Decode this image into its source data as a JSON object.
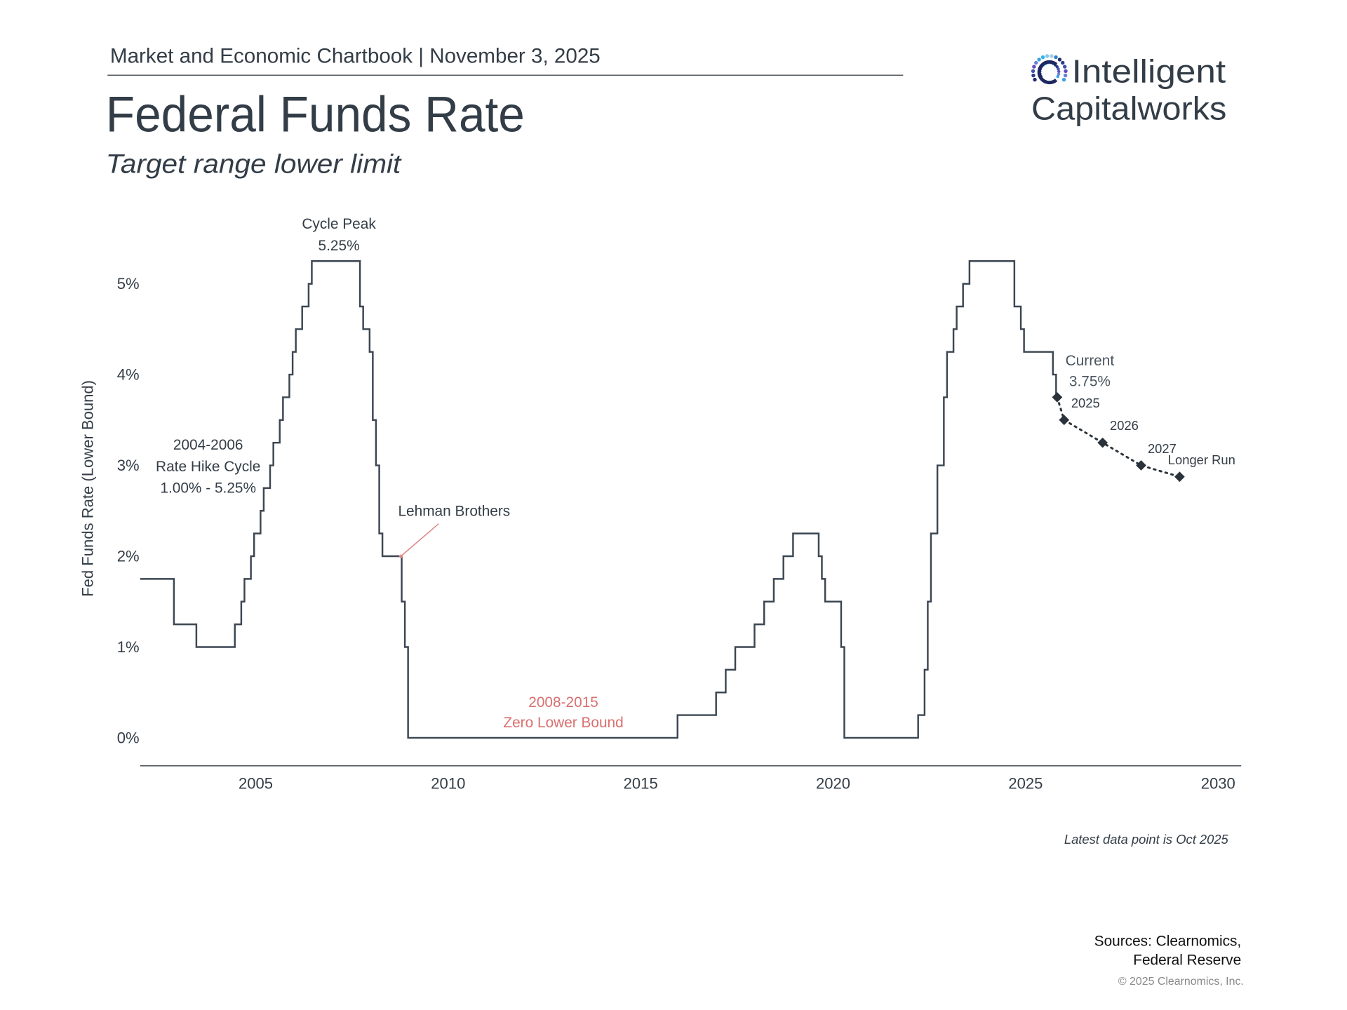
{
  "header": {
    "chartbook": "Market and Economic Chartbook | November 3, 2025",
    "title": "Federal Funds Rate",
    "subtitle": "Target range lower limit"
  },
  "logo": {
    "line1": "Intelligent",
    "line2": "Capitalworks",
    "icon": "radial-dots-c-icon",
    "colors": {
      "line1": "#111111",
      "line2": "#1a85c8"
    }
  },
  "chart_data": {
    "type": "line",
    "title": "Federal Funds Rate",
    "subtitle": "Target range lower limit",
    "xlabel": "",
    "ylabel": "Fed Funds Rate (Lower Bound)",
    "xlim": [
      2002,
      2030.6
    ],
    "ylim": [
      0,
      5.6
    ],
    "x_ticks": [
      "2005",
      "2010",
      "2015",
      "2020",
      "2025",
      "2030"
    ],
    "y_ticks": [
      "0%",
      "1%",
      "2%",
      "3%",
      "4%",
      "5%"
    ],
    "grid": false,
    "colors": {
      "line": "#3b4652",
      "projection": "#2a323b",
      "annotation_red": "#d9706f"
    },
    "series": [
      {
        "style": "step",
        "points": [
          [
            "2002-01",
            1.75
          ],
          [
            "2002-11",
            1.25
          ],
          [
            "2003-06",
            1.0
          ],
          [
            "2004-06",
            1.25
          ],
          [
            "2004-08",
            1.5
          ],
          [
            "2004-09",
            1.75
          ],
          [
            "2004-11",
            2.0
          ],
          [
            "2004-12",
            2.25
          ],
          [
            "2005-02",
            2.5
          ],
          [
            "2005-03",
            2.75
          ],
          [
            "2005-05",
            3.0
          ],
          [
            "2005-06",
            3.25
          ],
          [
            "2005-08",
            3.5
          ],
          [
            "2005-09",
            3.75
          ],
          [
            "2005-11",
            4.0
          ],
          [
            "2005-12",
            4.25
          ],
          [
            "2006-01",
            4.5
          ],
          [
            "2006-03",
            4.75
          ],
          [
            "2006-05",
            5.0
          ],
          [
            "2006-06",
            5.25
          ],
          [
            "2007-09",
            4.75
          ],
          [
            "2007-10",
            4.5
          ],
          [
            "2007-12",
            4.25
          ],
          [
            "2008-01",
            3.5
          ],
          [
            "2008-02",
            3.0
          ],
          [
            "2008-03",
            2.25
          ],
          [
            "2008-04",
            2.0
          ],
          [
            "2008-10",
            1.5
          ],
          [
            "2008-11",
            1.0
          ],
          [
            "2008-12",
            0.0
          ],
          [
            "2015-12",
            0.25
          ],
          [
            "2016-12",
            0.5
          ],
          [
            "2017-03",
            0.75
          ],
          [
            "2017-06",
            1.0
          ],
          [
            "2017-12",
            1.25
          ],
          [
            "2018-03",
            1.5
          ],
          [
            "2018-06",
            1.75
          ],
          [
            "2018-09",
            2.0
          ],
          [
            "2018-12",
            2.25
          ],
          [
            "2019-08",
            2.0
          ],
          [
            "2019-09",
            1.75
          ],
          [
            "2019-10",
            1.5
          ],
          [
            "2020-03",
            1.0
          ],
          [
            "2020-04",
            0.0
          ],
          [
            "2022-03",
            0.25
          ],
          [
            "2022-05",
            0.75
          ],
          [
            "2022-06",
            1.5
          ],
          [
            "2022-07",
            2.25
          ],
          [
            "2022-09",
            3.0
          ],
          [
            "2022-11",
            3.75
          ],
          [
            "2022-12",
            4.25
          ],
          [
            "2023-02",
            4.5
          ],
          [
            "2023-03",
            4.75
          ],
          [
            "2023-05",
            5.0
          ],
          [
            "2023-07",
            5.25
          ],
          [
            "2024-09",
            4.75
          ],
          [
            "2024-11",
            4.5
          ],
          [
            "2024-12",
            4.25
          ],
          [
            "2025-09",
            4.0
          ],
          [
            "2025-10",
            3.75
          ]
        ]
      },
      {
        "style": "dotted-diamonds",
        "points": [
          {
            "label": "Current",
            "x": 2025.82,
            "y": 3.75
          },
          {
            "label": "2025",
            "x": 2026.0,
            "y": 3.5
          },
          {
            "label": "2026",
            "x": 2027.0,
            "y": 3.25
          },
          {
            "label": "2027",
            "x": 2028.0,
            "y": 3.0
          },
          {
            "label": "Longer Run",
            "x": 2029.0,
            "y": 2.875
          }
        ]
      }
    ],
    "annotations": {
      "cycle_peak": [
        "Cycle Peak",
        "5.25%"
      ],
      "hike_cycle": [
        "2004-2006",
        "Rate Hike Cycle",
        "1.00% - 5.25%"
      ],
      "lehman": "Lehman Brothers",
      "zlb": [
        "2008-2015",
        "Zero Lower Bound"
      ],
      "current": [
        "Current",
        "3.75%"
      ],
      "proj_labels": [
        "2025",
        "2026",
        "2027",
        "Longer Run"
      ]
    }
  },
  "footer": {
    "latest": "Latest data point is Oct 2025",
    "sources1": "Sources: Clearnomics,",
    "sources2": "Federal Reserve",
    "copyright": "© 2025 Clearnomics, Inc."
  }
}
